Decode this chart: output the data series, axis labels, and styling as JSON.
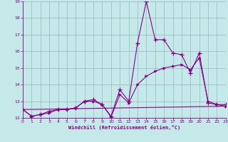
{
  "xlabel": "Windchill (Refroidissement éolien,°C)",
  "bg_color": "#c5e8e8",
  "line_color": "#880088",
  "xlim": [
    0,
    23
  ],
  "ylim": [
    12,
    19
  ],
  "yticks": [
    12,
    13,
    14,
    15,
    16,
    17,
    18,
    19
  ],
  "xticks": [
    0,
    1,
    2,
    3,
    4,
    5,
    6,
    7,
    8,
    9,
    10,
    11,
    12,
    13,
    14,
    15,
    16,
    17,
    18,
    19,
    20,
    21,
    22,
    23
  ],
  "line1_x": [
    0,
    1,
    2,
    3,
    4,
    5,
    6,
    7,
    8,
    9,
    10,
    11,
    12,
    13,
    14,
    15,
    16,
    17,
    18,
    19,
    20,
    21,
    22,
    23
  ],
  "line1_y": [
    12.5,
    12.1,
    12.2,
    12.4,
    12.5,
    12.5,
    12.6,
    13.0,
    13.1,
    12.8,
    12.1,
    13.7,
    13.0,
    16.5,
    19.0,
    16.7,
    16.7,
    15.9,
    15.8,
    14.7,
    15.9,
    12.9,
    12.8,
    12.8
  ],
  "line2_x": [
    0,
    1,
    2,
    3,
    4,
    5,
    6,
    7,
    8,
    9,
    10,
    11,
    12,
    13,
    14,
    15,
    16,
    17,
    18,
    19,
    20,
    21,
    22,
    23
  ],
  "line2_y": [
    12.5,
    12.1,
    12.2,
    12.3,
    12.5,
    12.5,
    12.6,
    13.0,
    13.0,
    12.8,
    12.05,
    13.4,
    12.9,
    14.0,
    14.5,
    14.8,
    15.0,
    15.1,
    15.2,
    14.9,
    15.6,
    13.0,
    12.8,
    12.7
  ],
  "line3_x": [
    0,
    23
  ],
  "line3_y": [
    12.5,
    12.7
  ]
}
